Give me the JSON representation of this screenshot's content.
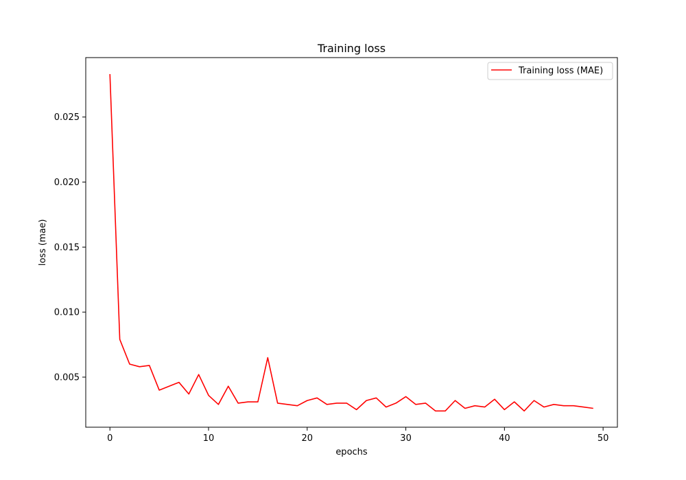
{
  "chart_data": {
    "type": "line",
    "title": "Training loss",
    "xlabel": "epochs",
    "ylabel": "loss (mae)",
    "xlim": [
      -2.45,
      51.45
    ],
    "ylim": [
      0.00115,
      0.02957
    ],
    "xticks": [
      0,
      10,
      20,
      30,
      40,
      50
    ],
    "xtick_labels": [
      "0",
      "10",
      "20",
      "30",
      "40",
      "50"
    ],
    "yticks": [
      0.005,
      0.01,
      0.015,
      0.02,
      0.025
    ],
    "ytick_labels": [
      "0.005",
      "0.010",
      "0.015",
      "0.020",
      "0.025"
    ],
    "grid": false,
    "legend_position": "top-right",
    "series": [
      {
        "name": "Training loss (MAE)",
        "color": "#ff0000",
        "x": [
          0,
          1,
          2,
          3,
          4,
          5,
          6,
          7,
          8,
          9,
          10,
          11,
          12,
          13,
          14,
          15,
          16,
          17,
          18,
          19,
          20,
          21,
          22,
          23,
          24,
          25,
          26,
          27,
          28,
          29,
          30,
          31,
          32,
          33,
          34,
          35,
          36,
          37,
          38,
          39,
          40,
          41,
          42,
          43,
          44,
          45,
          46,
          47,
          48,
          49
        ],
        "values": [
          0.0283,
          0.0079,
          0.006,
          0.0058,
          0.0059,
          0.004,
          0.0043,
          0.0046,
          0.0037,
          0.0052,
          0.0036,
          0.0029,
          0.0043,
          0.003,
          0.0031,
          0.0031,
          0.0065,
          0.003,
          0.0029,
          0.0028,
          0.0032,
          0.0034,
          0.0029,
          0.003,
          0.003,
          0.0025,
          0.0032,
          0.0034,
          0.0027,
          0.003,
          0.0035,
          0.0029,
          0.003,
          0.0024,
          0.0024,
          0.0032,
          0.0026,
          0.0028,
          0.0027,
          0.0033,
          0.0025,
          0.0031,
          0.0024,
          0.0032,
          0.0027,
          0.0029,
          0.0028,
          0.0028,
          0.0027,
          0.0026
        ]
      }
    ]
  }
}
